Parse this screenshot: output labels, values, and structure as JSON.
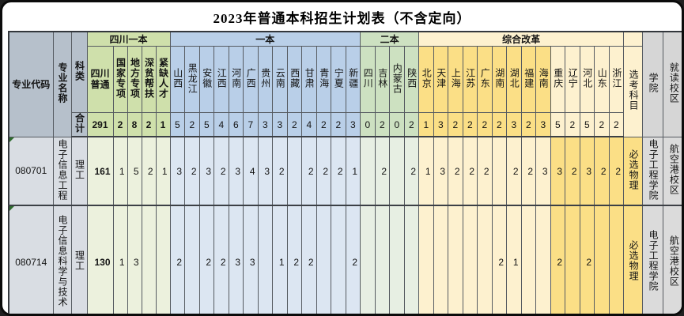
{
  "title": "2023年普通本科招生计划表（不含定向）",
  "columns": {
    "code": "专业代码",
    "name": "专业名称",
    "subject": "科类",
    "total_label": "合计",
    "exam": "选考科目",
    "college": "学院",
    "campus": "就读校区"
  },
  "groups": [
    {
      "label": "四川一本",
      "cols": [
        "四川普通",
        "国家专项",
        "地方专项",
        "深贫帮扶",
        "紧缺人才"
      ]
    },
    {
      "label": "一本",
      "cols": [
        "山西",
        "黑龙江",
        "安徽",
        "江西",
        "河南",
        "广西",
        "贵州",
        "云南",
        "西藏",
        "甘肃",
        "青海",
        "宁夏",
        "新疆"
      ]
    },
    {
      "label": "二本",
      "cols": [
        "四川",
        "吉林",
        "内蒙古",
        "陕西"
      ]
    },
    {
      "label": "综合改革",
      "cols": [
        "北京",
        "天津",
        "上海",
        "江苏",
        "广东",
        "湖南",
        "湖北",
        "福建",
        "海南",
        "重庆",
        "辽宁",
        "河北",
        "山东",
        "浙江"
      ]
    }
  ],
  "totals": [
    "291",
    "2",
    "8",
    "2",
    "1",
    "5",
    "2",
    "5",
    "4",
    "6",
    "7",
    "3",
    "3",
    "2",
    "4",
    "2",
    "2",
    "3",
    "0",
    "2",
    "0",
    "2",
    "1",
    "3",
    "2",
    "2",
    "2",
    "2",
    "3",
    "2",
    "3",
    "5",
    "2",
    "5",
    "2",
    "2"
  ],
  "rows": [
    {
      "code": "080701",
      "name": "电子信息工程",
      "subject": "理工",
      "values": [
        "161",
        "1",
        "5",
        "2",
        "1",
        "3",
        "2",
        "3",
        "2",
        "3",
        "4",
        "3",
        "2",
        "",
        "2",
        "2",
        "2",
        "1",
        "",
        "2",
        "",
        "2",
        "1",
        "3",
        "2",
        "2",
        "2",
        "",
        "2",
        "2",
        "3",
        "3",
        "2",
        "3",
        "2",
        "2"
      ],
      "exam": "必选物理",
      "college": "电子工程学院",
      "campus": "航空港校区"
    },
    {
      "code": "080714",
      "name": "电子信息科学与技术",
      "subject": "理工",
      "values": [
        "130",
        "1",
        "3",
        "",
        "",
        "2",
        "",
        "2",
        "2",
        "3",
        "3",
        "",
        "1",
        "2",
        "2",
        "",
        "",
        "2",
        "",
        "",
        "",
        "",
        "",
        "",
        "",
        "",
        "",
        "2",
        "1",
        "",
        "",
        "2",
        "",
        "2",
        "",
        ""
      ],
      "exam": "必选物理",
      "college": "电子工程学院",
      "campus": "航空港校区"
    }
  ],
  "colors": {
    "header-left": "#b6c0cb",
    "data-left": "#d9dde3",
    "green-header": "#cfe0ab",
    "green-data": "#ecf1dd",
    "blue-header": "#b9cfe8",
    "blue-data": "#dce6f2",
    "sage-header": "#cde1c1",
    "sage-data": "#e7efe3",
    "yellow-strong": "#fbdf86",
    "yellow-light": "#fdf1cf",
    "grey-header": "#d6d6d6",
    "grey-data": "#dbdbdb",
    "triangle-green": "#2e6b2e"
  }
}
